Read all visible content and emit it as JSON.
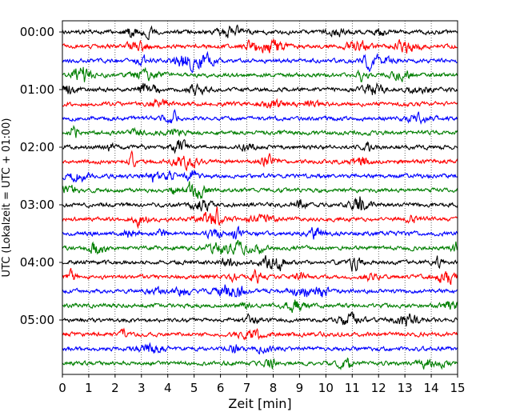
{
  "chart_data": {
    "type": "line",
    "xlabel": "Zeit  [min]",
    "ylabel": "UTC (Lokalzeit = UTC + 01:00)",
    "xlim": [
      0,
      15
    ],
    "x_ticks": [
      "0",
      "1",
      "2",
      "3",
      "4",
      "5",
      "6",
      "7",
      "8",
      "9",
      "10",
      "11",
      "12",
      "13",
      "14",
      "15"
    ],
    "y_tick_labels": [
      {
        "trace_index": 0,
        "label": "00:00"
      },
      {
        "trace_index": 4,
        "label": "01:00"
      },
      {
        "trace_index": 8,
        "label": "02:00"
      },
      {
        "trace_index": 12,
        "label": "03:00"
      },
      {
        "trace_index": 16,
        "label": "04:00"
      },
      {
        "trace_index": 20,
        "label": "05:00"
      }
    ],
    "grid": {
      "vertical": true,
      "horizontal": false,
      "style": "dotted"
    },
    "trace_minutes": 15,
    "trace_count": 24,
    "trace_colors": [
      "#000000",
      "#ff0000",
      "#0000ff",
      "#007f00"
    ],
    "colors": {
      "black": "#000000",
      "red": "#ff0000",
      "blue": "#0000ff",
      "green": "#007f00"
    }
  }
}
